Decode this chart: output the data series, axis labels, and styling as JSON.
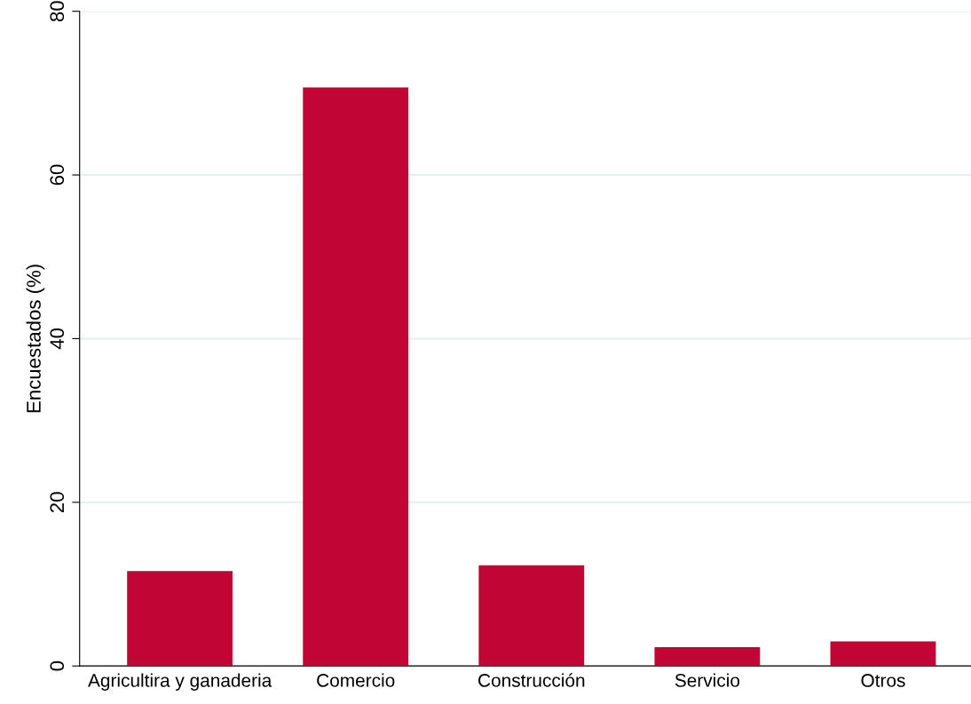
{
  "chart_data": {
    "type": "bar",
    "ylabel": "Encuestados (%)",
    "categories": [
      "Agricultira y ganaderia",
      "Comercio",
      "Construcción",
      "Servicio",
      "Otros"
    ],
    "values": [
      11.6,
      70.7,
      12.3,
      2.3,
      3.0
    ],
    "color": "#c10534",
    "ylim": [
      0,
      80
    ],
    "yticks": [
      0,
      20,
      40,
      60,
      80
    ],
    "grid": "y"
  }
}
